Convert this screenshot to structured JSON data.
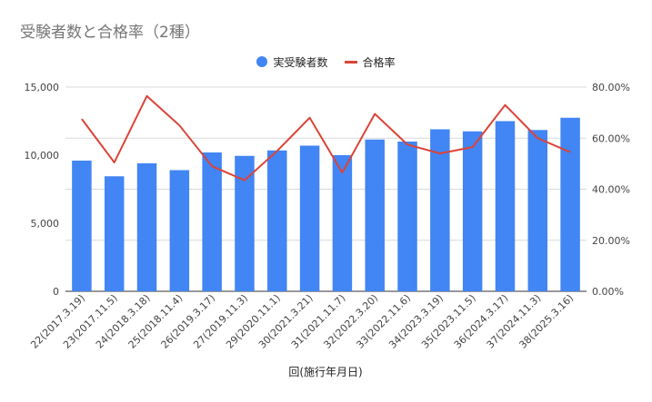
{
  "chart_data": {
    "type": "bar",
    "title": "受験者数と合格率（2種）",
    "xlabel": "回(施行年月日)",
    "ylabel": "",
    "y2label": "",
    "categories": [
      "22(2017.3.19)",
      "23(2017.11.5)",
      "24(2018.3.18)",
      "25(2018.11.4)",
      "26(2019.3.17)",
      "27(2019.11.3)",
      "29(2020.11.1)",
      "30(2021.3.21)",
      "31(2021.11.7)",
      "32(2022.3.20)",
      "33(2022.11.6)",
      "34(2023.3.19)",
      "35(2023.11.5)",
      "36(2024.3.17)",
      "37(2024.11.3)",
      "38(2025.3.16)"
    ],
    "series": [
      {
        "name": "実受験者数",
        "type": "bar",
        "axis": "left",
        "color": "#4285f4",
        "values": [
          9600,
          8450,
          9400,
          8900,
          10200,
          9950,
          10350,
          10700,
          10000,
          11150,
          11000,
          11900,
          11750,
          12500,
          11850,
          12750
        ]
      },
      {
        "name": "合格率",
        "type": "line",
        "axis": "right",
        "color": "#db4437",
        "values": [
          67.5,
          50.5,
          76.5,
          65.0,
          49.0,
          43.5,
          55.0,
          68.0,
          46.5,
          69.5,
          57.5,
          54.0,
          56.5,
          73.0,
          60.0,
          54.5
        ]
      }
    ],
    "ylim": [
      0,
      15000
    ],
    "y2lim": [
      0,
      80
    ],
    "yticks": [
      {
        "value": 0,
        "label": "0"
      },
      {
        "value": 5000,
        "label": "5,000"
      },
      {
        "value": 10000,
        "label": "10,000"
      },
      {
        "value": 15000,
        "label": "15,000"
      }
    ],
    "y2ticks": [
      {
        "value": 0,
        "label": "0.00%"
      },
      {
        "value": 20,
        "label": "20.00%"
      },
      {
        "value": 40,
        "label": "40.00%"
      },
      {
        "value": 60,
        "label": "60.00%"
      },
      {
        "value": 80,
        "label": "80.00%"
      }
    ],
    "grid": true,
    "legend_position": "top-center"
  }
}
